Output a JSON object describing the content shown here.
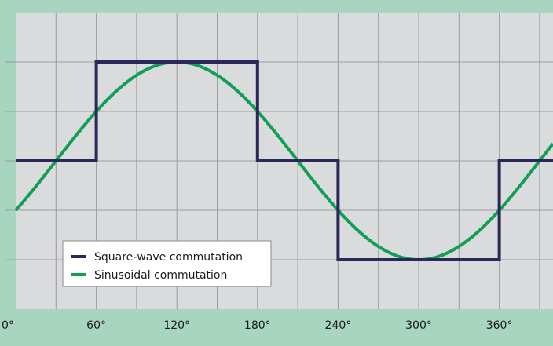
{
  "colors": {
    "frame": "#a8d5bf",
    "plot_background": "#dadbdd",
    "grid": "#9a9ca0",
    "square_wave": "#2b2758",
    "sinusoidal": "#109f55",
    "legend_background": "#ffffff",
    "legend_border": "#8a8a8a"
  },
  "chart_data": {
    "type": "line",
    "title": "",
    "xlabel": "",
    "ylabel": "",
    "x_ticks": [
      0,
      60,
      120,
      180,
      240,
      300,
      360
    ],
    "x_tick_labels": [
      "0°",
      "60°",
      "120°",
      "180°",
      "240°",
      "300°",
      "360°"
    ],
    "xlim": [
      0,
      400
    ],
    "ylim": [
      -3,
      3
    ],
    "y_tick_labels": [],
    "grid": true,
    "legend_position": "bottom-left",
    "series": [
      {
        "name": "Square-wave commutation",
        "style": "step",
        "x": [
          0,
          60,
          60,
          180,
          180,
          240,
          240,
          360,
          360,
          400
        ],
        "y": [
          0,
          0,
          2,
          2,
          0,
          0,
          -2,
          -2,
          0,
          0
        ]
      },
      {
        "name": "Sinusoidal commutation",
        "style": "sine",
        "amplitude": 2,
        "phase_shift_deg": 30,
        "x": [
          0,
          30,
          60,
          120,
          180,
          210,
          240,
          300,
          360,
          390,
          400
        ],
        "y": [
          -1,
          0,
          1,
          2,
          1,
          0,
          -1,
          -2,
          -1,
          0,
          0.35
        ]
      }
    ]
  }
}
